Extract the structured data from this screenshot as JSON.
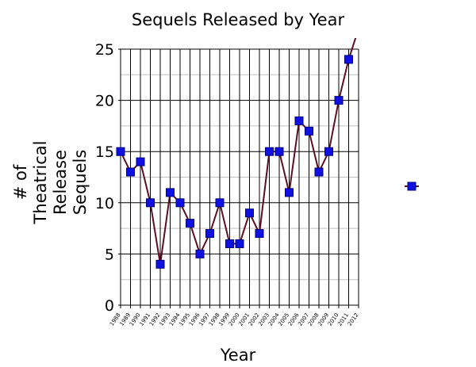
{
  "chart_data": {
    "type": "line",
    "title": "Sequels Released by Year",
    "xlabel": "Year",
    "ylabel_lines": [
      "# of",
      "Theatrical",
      "Release",
      "Sequels"
    ],
    "ylim": [
      0,
      25
    ],
    "y_ticks": [
      0,
      5,
      10,
      15,
      20,
      25
    ],
    "x_tick_labels": [
      "1988",
      "1989",
      "1990",
      "1991",
      "1992",
      "1993",
      "1994",
      "1995",
      "1996",
      "1997",
      "1998",
      "1999",
      "2000",
      "2001",
      "2002",
      "2003",
      "2004",
      "2005",
      "2006",
      "2007",
      "2008",
      "2009",
      "2010",
      "2011",
      "2012"
    ],
    "x": [
      1988,
      1989,
      1990,
      1991,
      1992,
      1993,
      1994,
      1995,
      1996,
      1997,
      1998,
      1999,
      2000,
      2001,
      2002,
      2003,
      2004,
      2005,
      2006,
      2007,
      2008,
      2009,
      2010,
      2011,
      2012
    ],
    "values": [
      15,
      13,
      14,
      10,
      4,
      11,
      10,
      8,
      5,
      7,
      10,
      6,
      6,
      9,
      7,
      15,
      15,
      11,
      18,
      17,
      13,
      15,
      20,
      24,
      27
    ],
    "grid": true,
    "legend_position": "right",
    "colors": {
      "line": "#5a1020",
      "marker": "#1010e0",
      "marker_edge": "#000080",
      "grid": "#000000",
      "minor_grid": "#c0c0c0"
    }
  }
}
